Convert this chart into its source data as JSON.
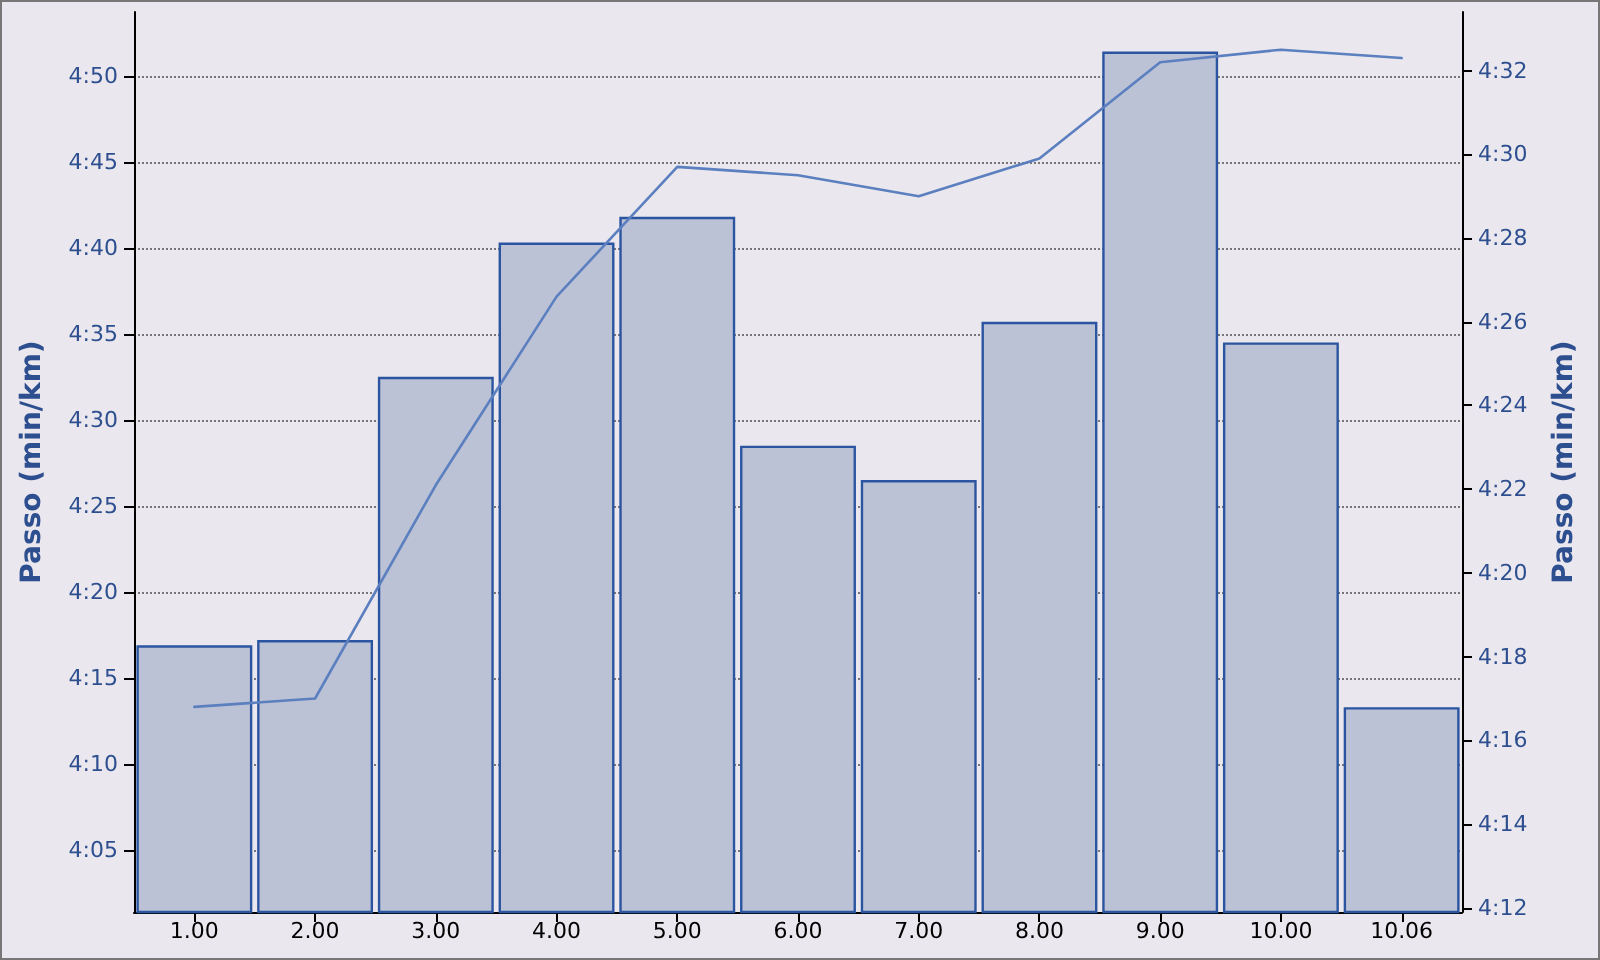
{
  "chart_data": {
    "type": "bar",
    "ylabel": "Passo (min/km)",
    "y2label": "Passo (min/km)",
    "categories": [
      "1.00",
      "2.00",
      "3.00",
      "4.00",
      "5.00",
      "6.00",
      "7.00",
      "8.00",
      "9.00",
      "10.00",
      "10.06"
    ],
    "series": [
      {
        "color": "#bcc2d6",
        "values": [
          256.9,
          257.2,
          272.5,
          280.3,
          281.8,
          268.5,
          266.5,
          275.7,
          291.4,
          274.5,
          253.3
        ]
      },
      {
        "type": "line",
        "axis": "y2",
        "color": "#5b7fbf",
        "marker": "none",
        "line_style": "solid",
        "values": [
          256.8,
          257.0,
          262.1,
          266.6,
          269.7,
          269.5,
          269.0,
          269.9,
          272.2,
          272.5,
          272.3
        ]
      }
    ],
    "ylim": [
      241.4,
      293.7
    ],
    "yticks": [
      {
        "value": 245,
        "label": "4:05"
      },
      {
        "value": 250,
        "label": "4:10"
      },
      {
        "value": 255,
        "label": "4:15"
      },
      {
        "value": 260,
        "label": "4:20"
      },
      {
        "value": 265,
        "label": "4:25"
      },
      {
        "value": 270,
        "label": "4:30"
      },
      {
        "value": 275,
        "label": "4:35"
      },
      {
        "value": 280,
        "label": "4:40"
      },
      {
        "value": 285,
        "label": "4:45"
      },
      {
        "value": 290,
        "label": "4:50"
      }
    ],
    "y2lim": [
      251.9,
      273.4
    ],
    "y2ticks": [
      {
        "value": 252,
        "label": "4:12"
      },
      {
        "value": 254,
        "label": "4:14"
      },
      {
        "value": 256,
        "label": "4:16"
      },
      {
        "value": 258,
        "label": "4:18"
      },
      {
        "value": 260,
        "label": "4:20"
      },
      {
        "value": 262,
        "label": "4:22"
      },
      {
        "value": 264,
        "label": "4:24"
      },
      {
        "value": 266,
        "label": "4:26"
      },
      {
        "value": 268,
        "label": "4:28"
      },
      {
        "value": 270,
        "label": "4:30"
      },
      {
        "value": 272,
        "label": "4:32"
      }
    ],
    "grid": "y"
  }
}
